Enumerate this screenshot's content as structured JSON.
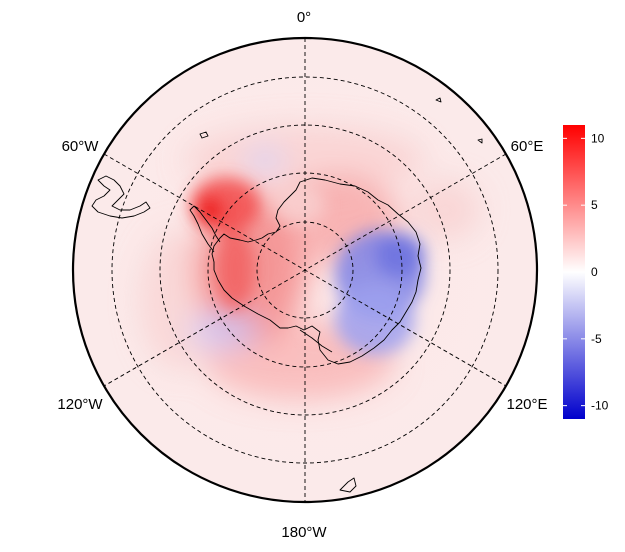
{
  "map": {
    "projection": "south-polar-stereographic",
    "longitude_labels": {
      "top": "0°",
      "upper_left": "60°W",
      "upper_right": "60°E",
      "lower_left": "120°W",
      "lower_right": "120°E",
      "bottom": "180°W"
    },
    "graticule_style": "dashed"
  },
  "colorbar": {
    "min": -11,
    "max": 11,
    "ticks": [
      "10",
      "5",
      "0",
      "-5",
      "-10"
    ],
    "colors": {
      "high": "#ff0000",
      "mid": "#ffffff",
      "low": "#0000cc"
    }
  }
}
